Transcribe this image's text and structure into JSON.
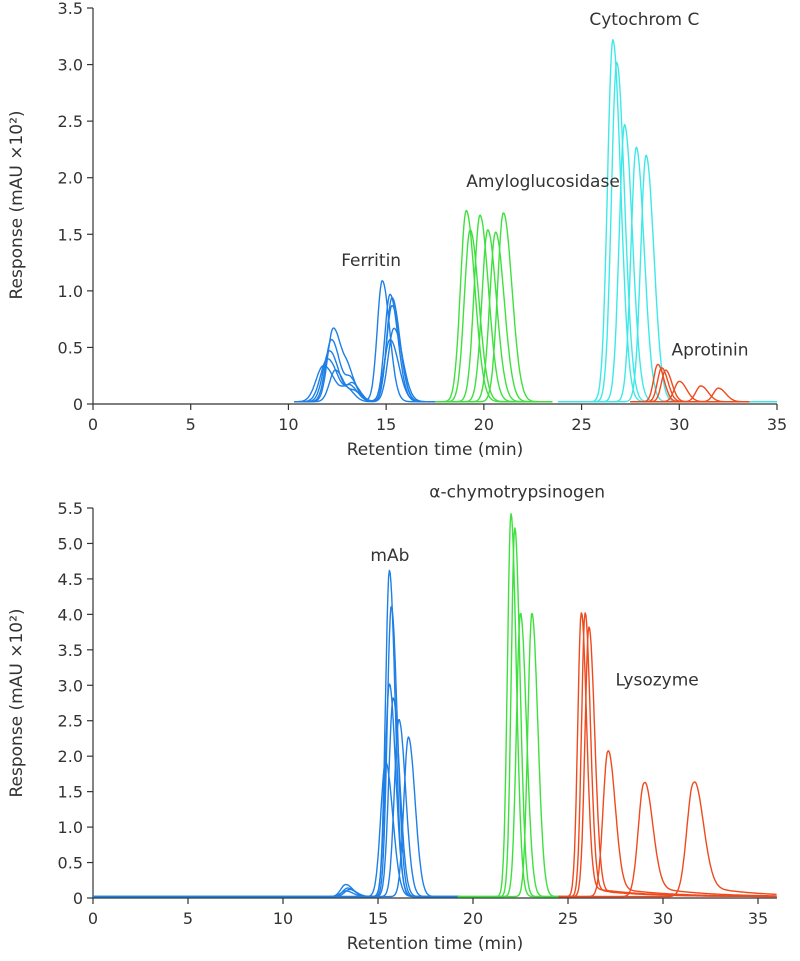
{
  "colors": {
    "blue": "#1e7fe6",
    "green": "#3ee03e",
    "cyan": "#3fe8e8",
    "red": "#ef4a1e",
    "axis": "#333333"
  },
  "chart_data": [
    {
      "type": "line",
      "xlabel": "Retention time (min)",
      "ylabel": "Response (mAU ×10²)",
      "xlim": [
        0,
        35
      ],
      "ylim": [
        0,
        3.5
      ],
      "xticks": [
        "0",
        "5",
        "10",
        "15",
        "20",
        "25",
        "30",
        "35"
      ],
      "yticks": [
        "0",
        "0.5",
        "1.0",
        "1.5",
        "2.0",
        "2.5",
        "3.0",
        "3.5"
      ],
      "annotations": [
        {
          "text": "Ferritin",
          "x": 12.7,
          "y": 1.22
        },
        {
          "text": "Amyloglucosidase",
          "x": 19.1,
          "y": 1.92
        },
        {
          "text": "Cytochrom C",
          "x": 25.4,
          "y": 3.35
        },
        {
          "text": "Aprotinin",
          "x": 29.6,
          "y": 0.43
        }
      ],
      "baseline": 0.02,
      "series": [
        {
          "group": "Ferritin",
          "color": "blue",
          "range": [
            10.3,
            17.6
          ],
          "peaks": [
            [
              12.3,
              0.65,
              0.35
            ],
            [
              13.1,
              0.2,
              0.3
            ],
            [
              14.8,
              1.07,
              0.3
            ]
          ]
        },
        {
          "group": "Ferritin",
          "color": "blue",
          "range": [
            10.3,
            17.6
          ],
          "peaks": [
            [
              12.2,
              0.55,
              0.35
            ],
            [
              13.2,
              0.18,
              0.3
            ],
            [
              15.2,
              0.95,
              0.32
            ]
          ]
        },
        {
          "group": "Ferritin",
          "color": "blue",
          "range": [
            10.3,
            17.6
          ],
          "peaks": [
            [
              12.1,
              0.45,
              0.38
            ],
            [
              13.3,
              0.15,
              0.3
            ],
            [
              15.3,
              0.92,
              0.32
            ]
          ]
        },
        {
          "group": "Ferritin",
          "color": "blue",
          "range": [
            10.3,
            17.6
          ],
          "peaks": [
            [
              12.0,
              0.38,
              0.42
            ],
            [
              13.2,
              0.12,
              0.3
            ],
            [
              15.3,
              0.85,
              0.33
            ]
          ]
        },
        {
          "group": "Ferritin",
          "color": "blue",
          "range": [
            10.3,
            17.6
          ],
          "peaks": [
            [
              11.8,
              0.32,
              0.45
            ],
            [
              13.0,
              0.1,
              0.3
            ],
            [
              15.4,
              0.65,
              0.35
            ]
          ]
        },
        {
          "group": "Ferritin",
          "color": "blue",
          "range": [
            10.3,
            17.6
          ],
          "peaks": [
            [
              12.4,
              0.28,
              0.35
            ],
            [
              13.4,
              0.08,
              0.3
            ],
            [
              15.2,
              0.55,
              0.35
            ]
          ]
        },
        {
          "group": "Amyloglucosidase",
          "color": "green",
          "range": [
            17.5,
            23.5
          ],
          "peaks": [
            [
              19.1,
              1.69,
              0.35
            ]
          ]
        },
        {
          "group": "Amyloglucosidase",
          "color": "green",
          "range": [
            17.5,
            23.5
          ],
          "peaks": [
            [
              19.3,
              1.52,
              0.35
            ]
          ]
        },
        {
          "group": "Amyloglucosidase",
          "color": "green",
          "range": [
            17.5,
            23.5
          ],
          "peaks": [
            [
              19.8,
              1.65,
              0.35
            ]
          ]
        },
        {
          "group": "Amyloglucosidase",
          "color": "green",
          "range": [
            17.5,
            23.5
          ],
          "peaks": [
            [
              20.2,
              1.52,
              0.35
            ]
          ]
        },
        {
          "group": "Amyloglucosidase",
          "color": "green",
          "range": [
            17.5,
            23.5
          ],
          "peaks": [
            [
              20.6,
              1.5,
              0.35
            ]
          ]
        },
        {
          "group": "Amyloglucosidase",
          "color": "green",
          "range": [
            17.5,
            23.5
          ],
          "peaks": [
            [
              21.0,
              1.67,
              0.35
            ]
          ]
        },
        {
          "group": "Cytochrom C",
          "color": "cyan",
          "range": [
            23.8,
            35
          ],
          "peaks": [
            [
              26.6,
              3.2,
              0.32
            ]
          ]
        },
        {
          "group": "Cytochrom C",
          "color": "cyan",
          "range": [
            23.8,
            35
          ],
          "peaks": [
            [
              26.8,
              3.0,
              0.32
            ]
          ]
        },
        {
          "group": "Cytochrom C",
          "color": "cyan",
          "range": [
            23.8,
            35
          ],
          "peaks": [
            [
              27.2,
              2.45,
              0.32
            ]
          ]
        },
        {
          "group": "Cytochrom C",
          "color": "cyan",
          "range": [
            23.8,
            35
          ],
          "peaks": [
            [
              27.8,
              2.25,
              0.32
            ]
          ]
        },
        {
          "group": "Cytochrom C",
          "color": "cyan",
          "range": [
            23.8,
            35
          ],
          "peaks": [
            [
              28.3,
              2.18,
              0.32
            ]
          ]
        },
        {
          "group": "Aprotinin",
          "color": "red",
          "range": [
            27.5,
            33.6
          ],
          "peaks": [
            [
              28.9,
              0.33,
              0.25
            ]
          ]
        },
        {
          "group": "Aprotinin",
          "color": "red",
          "range": [
            27.5,
            33.6
          ],
          "peaks": [
            [
              29.1,
              0.3,
              0.25
            ]
          ]
        },
        {
          "group": "Aprotinin",
          "color": "red",
          "range": [
            27.5,
            33.6
          ],
          "peaks": [
            [
              29.3,
              0.28,
              0.25
            ]
          ]
        },
        {
          "group": "Aprotinin",
          "color": "red",
          "range": [
            27.5,
            33.6
          ],
          "peaks": [
            [
              30.0,
              0.18,
              0.3
            ]
          ]
        },
        {
          "group": "Aprotinin",
          "color": "red",
          "range": [
            27.5,
            33.6
          ],
          "peaks": [
            [
              31.1,
              0.14,
              0.3
            ]
          ]
        },
        {
          "group": "Aprotinin",
          "color": "red",
          "range": [
            27.5,
            33.6
          ],
          "peaks": [
            [
              32.0,
              0.12,
              0.3
            ]
          ]
        }
      ]
    },
    {
      "type": "line",
      "xlabel": "Retention time (min)",
      "ylabel": "Response (mAU ×10²)",
      "xlim": [
        0,
        36
      ],
      "ylim": [
        0,
        5.5
      ],
      "xticks": [
        "0",
        "5",
        "10",
        "15",
        "20",
        "25",
        "30",
        "35"
      ],
      "yticks": [
        "0",
        "0.5",
        "1.0",
        "1.5",
        "2.0",
        "2.5",
        "3.0",
        "3.5",
        "4.0",
        "4.5",
        "5.0",
        "5.5"
      ],
      "annotations": [
        {
          "text": "mAb",
          "x": 14.6,
          "y": 4.75
        },
        {
          "text": "α-chymotrypsinogen",
          "x": 17.7,
          "y": 5.65
        },
        {
          "text": "Lysozyme",
          "x": 27.5,
          "y": 3.0
        }
      ],
      "baseline": 0.02,
      "series": [
        {
          "group": "mAb",
          "color": "blue",
          "range": [
            0,
            19.3
          ],
          "peaks": [
            [
              13.3,
              0.17,
              0.3
            ],
            [
              15.6,
              4.6,
              0.24
            ]
          ]
        },
        {
          "group": "mAb",
          "color": "blue",
          "range": [
            0,
            19.3
          ],
          "peaks": [
            [
              13.4,
              0.12,
              0.3
            ],
            [
              15.7,
              4.1,
              0.25
            ]
          ]
        },
        {
          "group": "mAb",
          "color": "blue",
          "range": [
            0,
            19.3
          ],
          "peaks": [
            [
              13.5,
              0.1,
              0.3
            ],
            [
              15.6,
              3.0,
              0.26
            ]
          ]
        },
        {
          "group": "mAb",
          "color": "blue",
          "range": [
            0,
            19.3
          ],
          "peaks": [
            [
              13.3,
              0.08,
              0.3
            ],
            [
              15.8,
              2.8,
              0.27
            ]
          ]
        },
        {
          "group": "mAb",
          "color": "blue",
          "range": [
            0,
            19.3
          ],
          "peaks": [
            [
              16.1,
              2.5,
              0.28
            ]
          ]
        },
        {
          "group": "mAb",
          "color": "blue",
          "range": [
            0,
            19.3
          ],
          "peaks": [
            [
              16.6,
              2.25,
              0.28
            ]
          ]
        },
        {
          "group": "mAb",
          "color": "blue",
          "range": [
            0,
            19.3
          ],
          "peaks": [
            [
              15.4,
              1.9,
              0.3
            ]
          ]
        },
        {
          "group": "α-chymotrypsinogen",
          "color": "green",
          "range": [
            19.2,
            24.6
          ],
          "peaks": [
            [
              22.0,
              5.4,
              0.22
            ]
          ]
        },
        {
          "group": "α-chymotrypsinogen",
          "color": "green",
          "range": [
            19.2,
            24.6
          ],
          "peaks": [
            [
              22.2,
              5.2,
              0.22
            ]
          ]
        },
        {
          "group": "α-chymotrypsinogen",
          "color": "green",
          "range": [
            19.2,
            24.6
          ],
          "peaks": [
            [
              22.5,
              4.0,
              0.25
            ]
          ]
        },
        {
          "group": "α-chymotrypsinogen",
          "color": "green",
          "range": [
            19.2,
            24.6
          ],
          "peaks": [
            [
              23.1,
              4.0,
              0.25
            ]
          ]
        },
        {
          "group": "Lysozyme",
          "color": "red",
          "range": [
            24.5,
            36
          ],
          "peaks": [
            [
              25.7,
              4.0,
              0.22
            ]
          ],
          "tail": 0.15
        },
        {
          "group": "Lysozyme",
          "color": "red",
          "range": [
            24.5,
            36
          ],
          "peaks": [
            [
              25.9,
              4.0,
              0.22
            ]
          ],
          "tail": 0.12
        },
        {
          "group": "Lysozyme",
          "color": "red",
          "range": [
            24.5,
            36
          ],
          "peaks": [
            [
              26.1,
              3.8,
              0.24
            ]
          ],
          "tail": 0.1
        },
        {
          "group": "Lysozyme",
          "color": "red",
          "range": [
            24.5,
            36
          ],
          "peaks": [
            [
              27.1,
              2.05,
              0.3
            ]
          ],
          "tail": 0.14
        },
        {
          "group": "Lysozyme",
          "color": "red",
          "range": [
            24.5,
            36
          ],
          "peaks": [
            [
              29.0,
              1.6,
              0.35
            ]
          ],
          "tail": 0.16
        },
        {
          "group": "Lysozyme",
          "color": "red",
          "range": [
            24.5,
            36
          ],
          "peaks": [
            [
              31.6,
              1.6,
              0.4
            ]
          ],
          "tail": 0.18
        }
      ]
    }
  ]
}
